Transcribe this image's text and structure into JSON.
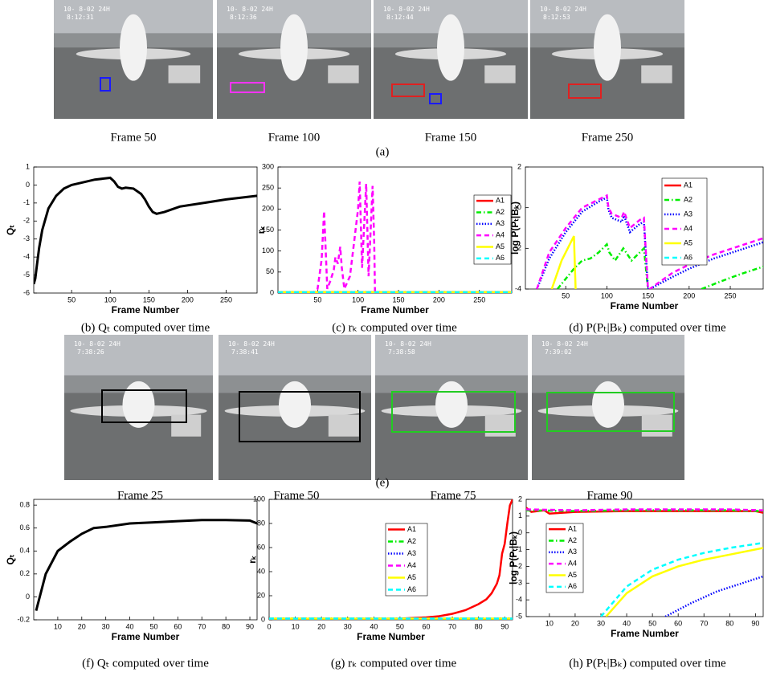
{
  "figure_rows": [
    {
      "label": "(a)",
      "frames": [
        {
          "label": "Frame 50",
          "stamp": "10- 8-02  24H",
          "time": "8:12:31"
        },
        {
          "label": "Frame 100",
          "stamp": "10- 8-02  24H",
          "time": "8:12:36"
        },
        {
          "label": "Frame 150",
          "stamp": "10- 8-02  24H",
          "time": "8:12:44"
        },
        {
          "label": "Frame 250",
          "stamp": "10- 8-02  24H",
          "time": "8:12:53"
        }
      ]
    },
    {
      "label": "(e)",
      "frames": [
        {
          "label": "Frame 25",
          "stamp": "10- 8-02  24H",
          "time": "7:38:26"
        },
        {
          "label": "Frame 50",
          "stamp": "10- 8-02  24H",
          "time": "7:38:41"
        },
        {
          "label": "Frame 75",
          "stamp": "10- 8-02  24H",
          "time": "7:38:58"
        },
        {
          "label": "Frame 90",
          "stamp": "10- 8-02  24H",
          "time": "7:39:02"
        }
      ]
    }
  ],
  "chart_data": [
    {
      "type": "line",
      "caption": "(b) Qₜ computed over time",
      "xlabel": "Frame Number",
      "ylabel": "Qₜ",
      "xlim": [
        1,
        290
      ],
      "xticks": [
        50,
        100,
        150,
        200,
        250
      ],
      "ylim": [
        -6,
        1
      ],
      "yticks": [
        -6,
        -5,
        -4,
        -3,
        -2,
        -1,
        0,
        1
      ],
      "series": [
        {
          "color": "#000000",
          "style": "solid",
          "x": [
            1,
            3,
            5,
            8,
            12,
            20,
            30,
            40,
            50,
            60,
            80,
            100,
            105,
            110,
            115,
            120,
            130,
            140,
            145,
            150,
            155,
            160,
            170,
            190,
            220,
            250,
            290
          ],
          "values": [
            -5.5,
            -5.2,
            -4.5,
            -3.5,
            -2.5,
            -1.3,
            -0.6,
            -0.2,
            0,
            0.1,
            0.3,
            0.4,
            0.2,
            -0.1,
            -0.2,
            -0.15,
            -0.2,
            -0.5,
            -0.8,
            -1.2,
            -1.5,
            -1.6,
            -1.5,
            -1.2,
            -1,
            -0.8,
            -0.6
          ]
        }
      ]
    },
    {
      "type": "line",
      "caption": "(c) rₖ computed over time",
      "xlabel": "Frame Number",
      "ylabel": "rₖ",
      "xlim": [
        1,
        290
      ],
      "xticks": [
        50,
        100,
        150,
        200,
        250
      ],
      "ylim": [
        0,
        300
      ],
      "yticks": [
        0,
        50,
        100,
        150,
        200,
        250,
        300
      ],
      "series": [
        {
          "name": "A1",
          "color": "#ff0000",
          "style": "solid",
          "x": [
            1,
            290
          ],
          "values": [
            2,
            2
          ]
        },
        {
          "name": "A2",
          "color": "#00ee00",
          "style": "dashdot",
          "x": [
            1,
            290
          ],
          "values": [
            2,
            2
          ]
        },
        {
          "name": "A3",
          "color": "#0000ff",
          "style": "dotted",
          "x": [
            1,
            290
          ],
          "values": [
            2,
            2
          ]
        },
        {
          "name": "A4",
          "color": "#ff00ff",
          "style": "dashed",
          "x": [
            1,
            40,
            45,
            50,
            55,
            58,
            62,
            66,
            70,
            72,
            75,
            78,
            80,
            83,
            90,
            95,
            100,
            102,
            105,
            110,
            113,
            118,
            120,
            121,
            150,
            200,
            250,
            290
          ],
          "values": [
            0,
            0,
            2,
            10,
            80,
            195,
            10,
            30,
            55,
            85,
            70,
            110,
            60,
            10,
            40,
            120,
            200,
            265,
            60,
            260,
            40,
            255,
            120,
            0,
            0,
            0,
            0,
            0
          ]
        },
        {
          "name": "A5",
          "color": "#ffff00",
          "style": "solid",
          "x": [
            1,
            290
          ],
          "values": [
            2,
            2
          ]
        },
        {
          "name": "A6",
          "color": "#00ffff",
          "style": "dashed",
          "x": [
            1,
            290
          ],
          "values": [
            2,
            2
          ]
        }
      ]
    },
    {
      "type": "line",
      "caption": "(d) P(Pₜ|Bₖ) computed over time",
      "xlabel": "Frame Number",
      "ylabel": "log P(Pₜ|Bₖ)",
      "xlim": [
        1,
        290
      ],
      "xticks": [
        50,
        100,
        150,
        200,
        250
      ],
      "ylim": [
        -4,
        2
      ],
      "yticks": [
        -4,
        -2,
        0,
        2
      ],
      "series": [
        {
          "name": "A1",
          "color": "#ff0000",
          "style": "solid",
          "x": [],
          "values": []
        },
        {
          "name": "A2",
          "color": "#00ee00",
          "style": "dashdot",
          "x": [
            40,
            60,
            70,
            80,
            90,
            100,
            103,
            110,
            120,
            130,
            140,
            145,
            150,
            180,
            215,
            240,
            260,
            290
          ],
          "values": [
            -4,
            -3,
            -2.6,
            -2.5,
            -2.2,
            -1.8,
            -2.2,
            -2.6,
            -2,
            -2.6,
            -2.2,
            -2,
            -4,
            null,
            -4,
            -3.6,
            -3.3,
            -2.9
          ]
        },
        {
          "name": "A3",
          "color": "#0000ff",
          "style": "dotted",
          "x": [
            15,
            30,
            50,
            70,
            90,
            100,
            102,
            106,
            118,
            121,
            128,
            140,
            145,
            150,
            152,
            180,
            200,
            230,
            260,
            290
          ],
          "values": [
            -4,
            -2.5,
            -1.2,
            -0.2,
            0.3,
            0.5,
            -0.1,
            -0.5,
            -0.7,
            -0.4,
            -1.2,
            -0.8,
            -0.7,
            -4,
            -4,
            -3.4,
            -3,
            -2.5,
            -2.1,
            -1.7
          ]
        },
        {
          "name": "A4",
          "color": "#ff00ff",
          "style": "dashed",
          "x": [
            15,
            30,
            50,
            70,
            90,
            100,
            102,
            106,
            118,
            121,
            128,
            140,
            145,
            150,
            152,
            180,
            200,
            230,
            260,
            290
          ],
          "values": [
            -4,
            -2.2,
            -1,
            0,
            0.4,
            0.6,
            0,
            -0.3,
            -0.5,
            -0.2,
            -1,
            -0.6,
            -0.5,
            -4,
            -4,
            -3.2,
            -2.8,
            -2.3,
            -1.9,
            -1.5
          ]
        },
        {
          "name": "A5",
          "color": "#ffff00",
          "style": "solid",
          "x": [
            33,
            45,
            60,
            62
          ],
          "values": [
            -4,
            -2.6,
            -1.4,
            -4
          ]
        },
        {
          "name": "A6",
          "color": "#00ffff",
          "style": "dashed",
          "x": [],
          "values": []
        }
      ]
    },
    {
      "type": "line",
      "caption": "(f) Qₜ computed over time",
      "xlabel": "Frame Number",
      "ylabel": "Qₜ",
      "xlim": [
        0,
        93
      ],
      "xticks": [
        10,
        20,
        30,
        40,
        50,
        60,
        70,
        80,
        90
      ],
      "ylim": [
        -0.2,
        0.85
      ],
      "yticks": [
        -0.2,
        0,
        0.2,
        0.4,
        0.6,
        0.8
      ],
      "series": [
        {
          "color": "#000000",
          "style": "solid",
          "x": [
            1,
            5,
            10,
            15,
            20,
            25,
            30,
            40,
            50,
            60,
            70,
            80,
            90,
            93
          ],
          "values": [
            -0.12,
            0.2,
            0.4,
            0.48,
            0.55,
            0.6,
            0.61,
            0.64,
            0.65,
            0.66,
            0.67,
            0.67,
            0.665,
            0.64
          ]
        }
      ]
    },
    {
      "type": "line",
      "caption": "(g) rₖ computed over time",
      "xlabel": "Frame Number",
      "ylabel": "rₖ",
      "xlim": [
        0,
        93
      ],
      "xticks": [
        0,
        10,
        20,
        30,
        40,
        50,
        60,
        70,
        80,
        90
      ],
      "ylim": [
        0,
        100
      ],
      "yticks": [
        0,
        20,
        40,
        60,
        80,
        100
      ],
      "series": [
        {
          "name": "A1",
          "color": "#ff0000",
          "style": "solid",
          "x": [
            0,
            10,
            20,
            30,
            40,
            50,
            60,
            65,
            70,
            75,
            80,
            83,
            85,
            87,
            88,
            89,
            90,
            91,
            92,
            93
          ],
          "values": [
            0.5,
            0.5,
            0.5,
            0.5,
            0.6,
            1,
            2,
            3,
            5,
            8,
            13,
            17,
            22,
            30,
            37,
            55,
            63,
            80,
            95,
            100
          ]
        },
        {
          "name": "A2",
          "color": "#00ee00",
          "style": "dashdot",
          "x": [
            0,
            93
          ],
          "values": [
            1,
            1
          ]
        },
        {
          "name": "A3",
          "color": "#0000ff",
          "style": "dotted",
          "x": [
            0,
            93
          ],
          "values": [
            1,
            1
          ]
        },
        {
          "name": "A4",
          "color": "#ff00ff",
          "style": "dashed",
          "x": [
            0,
            93
          ],
          "values": [
            1,
            1
          ]
        },
        {
          "name": "A5",
          "color": "#ffff00",
          "style": "solid",
          "x": [
            0,
            93
          ],
          "values": [
            1,
            1
          ]
        },
        {
          "name": "A6",
          "color": "#00ffff",
          "style": "dashed",
          "x": [
            0,
            93
          ],
          "values": [
            1,
            1
          ]
        }
      ]
    },
    {
      "type": "line",
      "caption": "(h) P(Pₜ|Bₖ) computed over time",
      "xlabel": "Frame Number",
      "ylabel": "log P(Pₜ|Bₖ)",
      "xlim": [
        1,
        93
      ],
      "xticks": [
        10,
        20,
        30,
        40,
        50,
        60,
        70,
        80,
        90
      ],
      "ylim": [
        -5,
        2
      ],
      "yticks": [
        -5,
        -4,
        -3,
        -2,
        -1,
        0,
        1,
        2
      ],
      "series": [
        {
          "name": "A1",
          "color": "#ff0000",
          "style": "solid",
          "x": [
            1,
            3,
            8,
            10,
            20,
            40,
            60,
            80,
            90,
            93
          ],
          "values": [
            1.5,
            1.25,
            1.35,
            1.15,
            1.25,
            1.3,
            1.3,
            1.3,
            1.3,
            1.2
          ]
        },
        {
          "name": "A2",
          "color": "#00ee00",
          "style": "dashdot",
          "x": [
            1,
            20,
            40,
            60,
            80,
            93
          ],
          "values": [
            1.35,
            1.3,
            1.35,
            1.35,
            1.35,
            1.3
          ]
        },
        {
          "name": "A3",
          "color": "#0000ff",
          "style": "dotted",
          "x": [
            55,
            65,
            75,
            85,
            93
          ],
          "values": [
            -5,
            -4.2,
            -3.5,
            -3,
            -2.6
          ]
        },
        {
          "name": "A4",
          "color": "#ff00ff",
          "style": "dashed",
          "x": [
            1,
            20,
            40,
            60,
            80,
            93
          ],
          "values": [
            1.4,
            1.35,
            1.4,
            1.4,
            1.4,
            1.35
          ]
        },
        {
          "name": "A5",
          "color": "#ffff00",
          "style": "solid",
          "x": [
            32,
            40,
            50,
            60,
            70,
            80,
            93
          ],
          "values": [
            -5,
            -3.6,
            -2.6,
            -2,
            -1.6,
            -1.3,
            -0.9
          ]
        },
        {
          "name": "A6",
          "color": "#00ffff",
          "style": "dashed",
          "x": [
            30,
            40,
            50,
            60,
            70,
            80,
            93
          ],
          "values": [
            -5,
            -3.2,
            -2.2,
            -1.6,
            -1.2,
            -0.9,
            -0.6
          ]
        }
      ]
    }
  ]
}
